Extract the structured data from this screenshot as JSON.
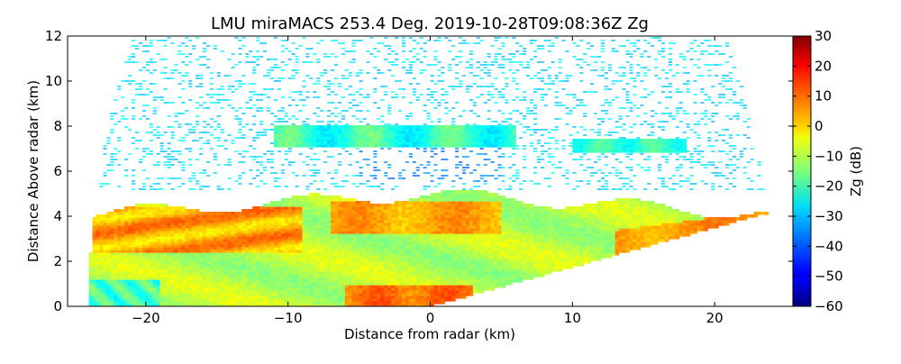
{
  "chart_data": {
    "type": "heatmap",
    "title": "LMU miraMACS 253.4 Deg. 2019-10-28T09:08:36Z  Zg",
    "xlabel": "Distance from radar (km)",
    "ylabel": "Distance Above radar  (km)",
    "xlim": [
      -25.5,
      25.5
    ],
    "ylim": [
      0,
      12
    ],
    "xticks": [
      -20,
      -10,
      0,
      10,
      20
    ],
    "xtick_labels": [
      "−20",
      "−10",
      "0",
      "10",
      "20"
    ],
    "yticks": [
      0,
      2,
      4,
      6,
      8,
      10,
      12
    ],
    "ytick_labels": [
      "0",
      "2",
      "4",
      "6",
      "8",
      "10",
      "12"
    ],
    "colorbar": {
      "label": "Zg (dB)",
      "range": [
        -60,
        30
      ],
      "ticks": [
        30,
        20,
        10,
        0,
        -10,
        -20,
        -30,
        -40,
        -50,
        -60
      ],
      "tick_labels": [
        "30",
        "20",
        "10",
        "0",
        "−10",
        "−20",
        "−30",
        "−40",
        "−50",
        "−60"
      ],
      "colormap": "jet"
    },
    "scan": {
      "azimuth_deg": 253.4,
      "timestamp": "2019-10-28T09:08:36Z",
      "variable": "Zg",
      "max_range_km": 24,
      "ground_edge": {
        "x": [
          0,
          24
        ],
        "y": [
          0,
          4.2
        ]
      }
    },
    "features": [
      {
        "name": "high cloud / noise field",
        "x_range": [
          -22,
          23
        ],
        "y_range": [
          5.5,
          12
        ],
        "zg_dB": -28
      },
      {
        "name": "upper thin layer",
        "x_range": [
          -11,
          6
        ],
        "y_range": [
          7.2,
          7.9
        ],
        "zg_dB": -22
      },
      {
        "name": "upper thin layer right",
        "x_range": [
          10,
          18
        ],
        "y_range": [
          7.0,
          7.5
        ],
        "zg_dB": -22
      },
      {
        "name": "mid cloud (ice)",
        "x_range": [
          -24,
          23
        ],
        "y_range": [
          0.5,
          5.2
        ],
        "zg_dB": -8
      },
      {
        "name": "bright band streaks left",
        "x_range": [
          -24,
          -10
        ],
        "y_range": [
          2.5,
          4.3
        ],
        "zg_dB": 8
      },
      {
        "name": "core around radar",
        "x_range": [
          -6,
          5
        ],
        "y_range": [
          3.4,
          4.6
        ],
        "zg_dB": 6
      },
      {
        "name": "low core",
        "x_range": [
          -6,
          3
        ],
        "y_range": [
          0,
          0.8
        ],
        "zg_dB": 10
      },
      {
        "name": "right slant band",
        "x_range": [
          14,
          24
        ],
        "y_range": [
          2.4,
          4.2
        ],
        "zg_dB": 5
      }
    ]
  }
}
